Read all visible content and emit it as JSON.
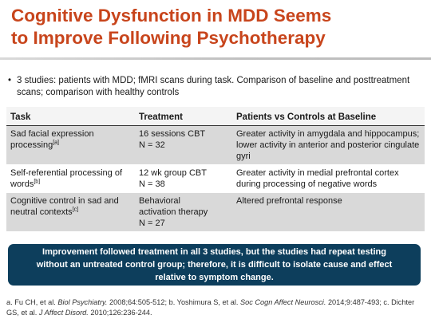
{
  "slide": {
    "title_line1": "Cognitive Dysfunction in MDD Seems",
    "title_line2": "to Improve Following Psychotherapy",
    "title_color": "#c8451c",
    "bullet": "3 studies: patients with MDD; fMRI scans during task. Comparison of baseline and posttreatment scans; comparison with healthy controls",
    "bullet_marker": "•"
  },
  "table": {
    "headers": [
      "Task",
      "Treatment",
      "Patients vs Controls at Baseline"
    ],
    "rows": [
      {
        "task": "Sad facial expression processing",
        "task_sup": "[a]",
        "treatment_line1": "16 sessions CBT",
        "treatment_line2": "N = 32",
        "treatment_line3": "",
        "finding": "Greater activity in amygdala and hippocampus; lower activity in anterior and posterior cingulate gyri"
      },
      {
        "task": "Self-referential processing of words",
        "task_sup": "[b]",
        "treatment_line1": "12 wk group CBT",
        "treatment_line2": "N = 38",
        "treatment_line3": "",
        "finding": "Greater activity in medial prefrontal cortex during processing of negative words"
      },
      {
        "task": "Cognitive control in sad and neutral contexts",
        "task_sup": "[c]",
        "treatment_line1": "Behavioral",
        "treatment_line2": "activation therapy",
        "treatment_line3": "N = 27",
        "finding": "Altered prefrontal response"
      }
    ]
  },
  "callout": {
    "text": "Improvement followed treatment in all 3 studies, but the studies had repeat testing without an untreated control group; therefore, it is difficult to isolate cause and effect relative to symptom change.",
    "bg_color": "#0d3e5c"
  },
  "references": {
    "a_prefix": "a. Fu CH, et al. ",
    "a_journal": "Biol Psychiatry.",
    "a_suffix": " 2008;64:505-512; b. Yoshimura S, et al. ",
    "b_journal": "Soc Cogn Affect Neurosci.",
    "b_suffix": " 2014;9:487-493; c. Dichter GS, et al. ",
    "c_journal": "J Affect Disord.",
    "c_suffix": " 2010;126:236-244."
  }
}
